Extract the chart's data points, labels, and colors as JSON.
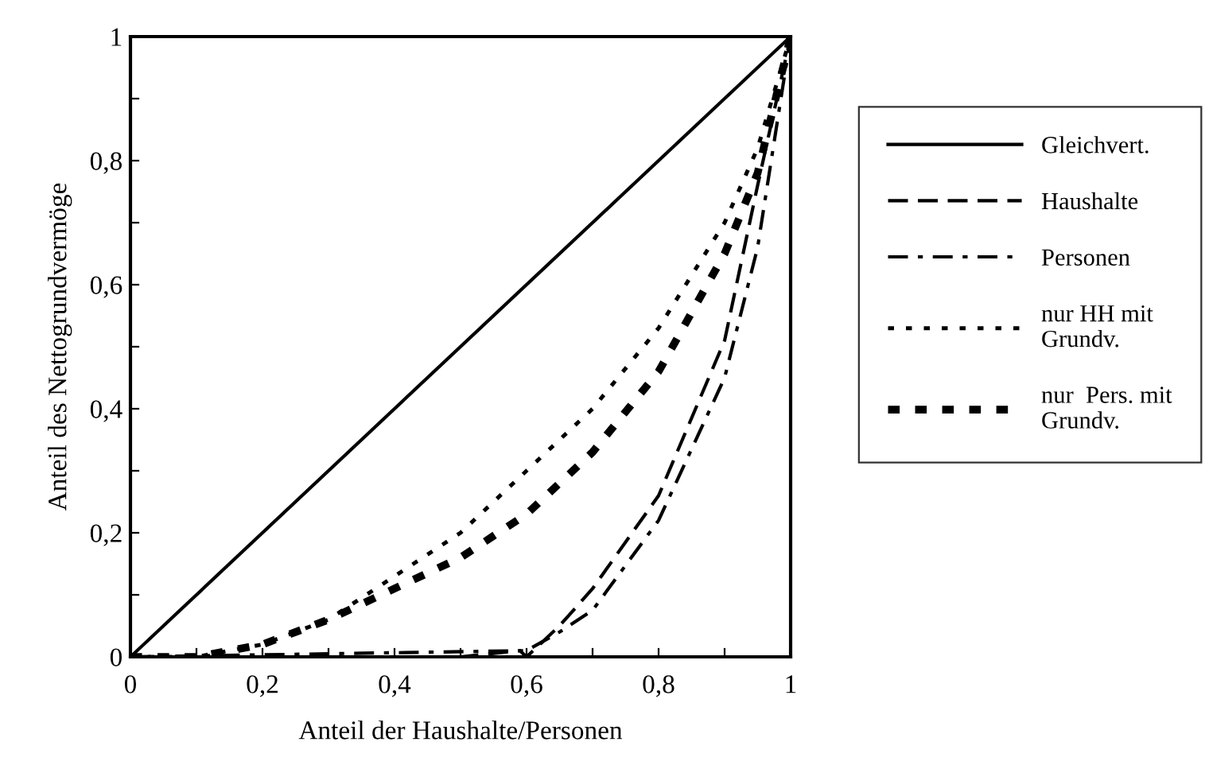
{
  "chart_data": {
    "type": "line",
    "xlabel": "Anteil der Haushalte/Personen",
    "ylabel": "Anteil des Nettogrundvermöge",
    "series": [
      {
        "name": "Gleichvert.",
        "color": "#000000",
        "line_style": "solid",
        "x": [
          0,
          1
        ],
        "values": [
          0,
          1
        ]
      },
      {
        "name": "Haushalte",
        "color": "#000000",
        "line_style": "dashed",
        "x": [
          0,
          0.5,
          0.59,
          0.6,
          0.65,
          0.7,
          0.8,
          0.9,
          0.95,
          1
        ],
        "values": [
          0,
          0,
          0.01,
          0,
          0.05,
          0.11,
          0.26,
          0.51,
          0.76,
          1
        ]
      },
      {
        "name": "Personen",
        "color": "#000000",
        "line_style": "dashdot",
        "x": [
          0,
          0.6,
          0.65,
          0.7,
          0.8,
          0.9,
          0.95,
          1
        ],
        "values": [
          0,
          0.01,
          0.04,
          0.075,
          0.22,
          0.45,
          0.66,
          1
        ]
      },
      {
        "name": "nur HH mit\nGrundv.",
        "color": "#000000",
        "line_style": "dotted",
        "x": [
          0,
          0.1,
          0.2,
          0.3,
          0.4,
          0.5,
          0.6,
          0.7,
          0.8,
          0.9,
          0.95,
          1
        ],
        "values": [
          0,
          0,
          0.02,
          0.06,
          0.13,
          0.2,
          0.3,
          0.4,
          0.53,
          0.7,
          0.82,
          1
        ]
      },
      {
        "name": "nur  Pers. mit\nGrundv.",
        "color": "#000000",
        "line_style": "thickdashed",
        "x": [
          0,
          0.1,
          0.2,
          0.3,
          0.4,
          0.5,
          0.6,
          0.7,
          0.8,
          0.9,
          0.95,
          1
        ],
        "values": [
          0,
          0,
          0.02,
          0.06,
          0.11,
          0.16,
          0.23,
          0.33,
          0.46,
          0.65,
          0.78,
          1
        ]
      }
    ],
    "xlim": [
      0,
      1
    ],
    "ylim": [
      0,
      1
    ],
    "xticks": [
      0,
      {
        "value": 0.1,
        "label": null
      },
      {
        "value": 0.2,
        "label": "0,2"
      },
      {
        "value": 0.3,
        "label": null
      },
      {
        "value": 0.4,
        "label": "0,4"
      },
      {
        "value": 0.5,
        "label": null
      },
      {
        "value": 0.6,
        "label": "0,6"
      },
      {
        "value": 0.7,
        "label": null
      },
      {
        "value": 0.8,
        "label": "0,8"
      },
      {
        "value": 0.9,
        "label": null
      },
      1
    ],
    "yticks": [
      0,
      {
        "value": 0.1,
        "label": null
      },
      {
        "value": 0.2,
        "label": "0,2"
      },
      {
        "value": 0.3,
        "label": null
      },
      {
        "value": 0.4,
        "label": "0,4"
      },
      {
        "value": 0.5,
        "label": null
      },
      {
        "value": 0.6,
        "label": "0,6"
      },
      {
        "value": 0.7,
        "label": null
      },
      {
        "value": 0.8,
        "label": "0,8"
      },
      {
        "value": 0.9,
        "label": null
      },
      1
    ],
    "grid": false,
    "legend": "right",
    "marker": "none"
  }
}
